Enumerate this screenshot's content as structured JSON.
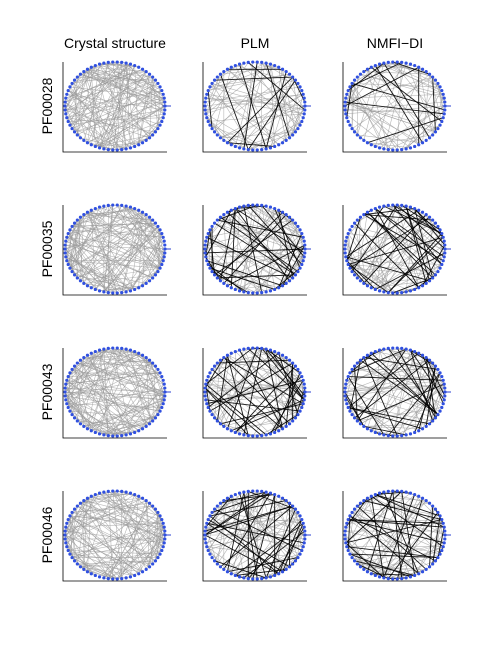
{
  "columns": [
    "Crystal structure",
    "PLM",
    "NMFI−DI"
  ],
  "rows": [
    "PF00028",
    "PF00035",
    "PF00043",
    "PF00046"
  ]
}
